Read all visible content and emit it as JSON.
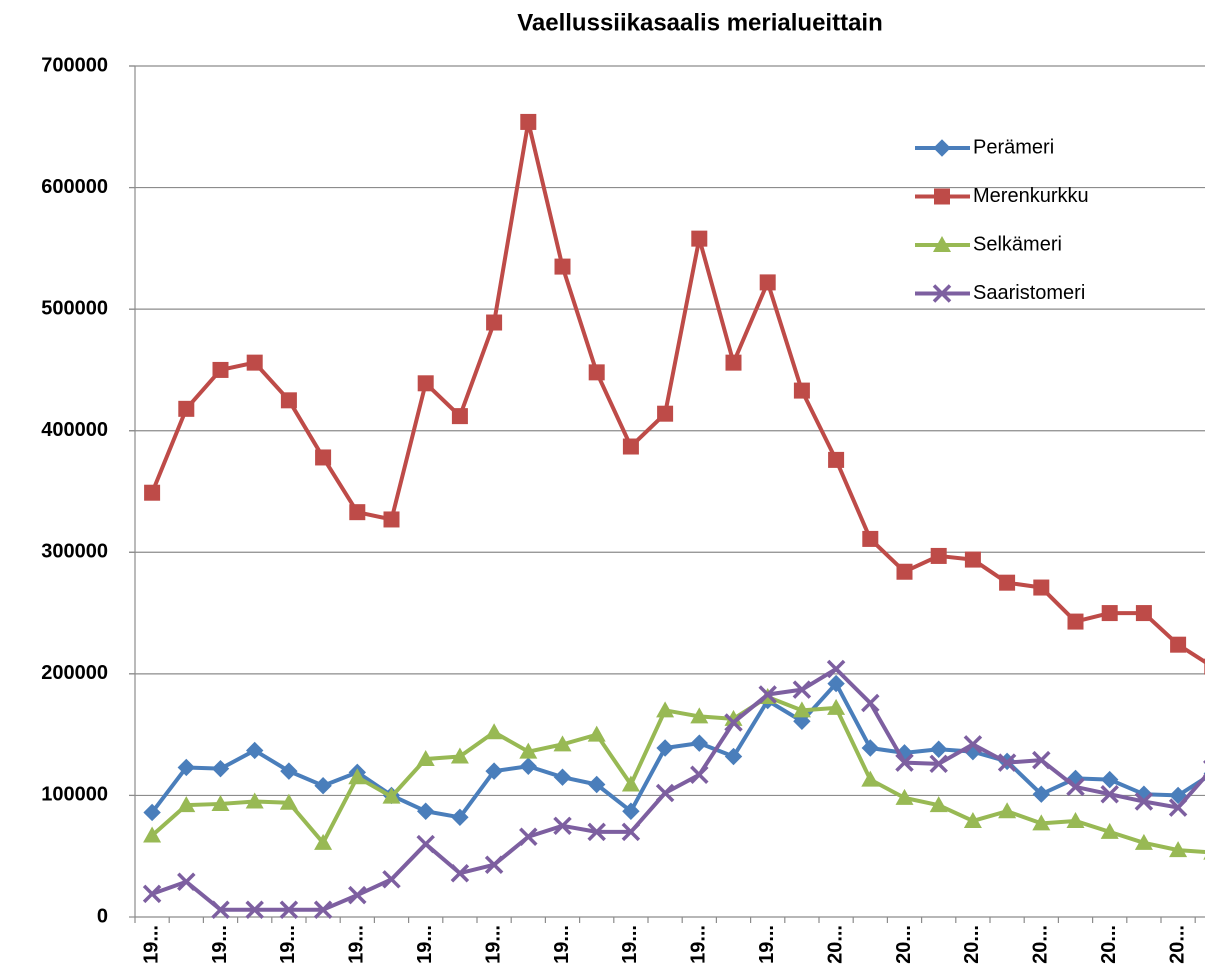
{
  "chart_data": {
    "type": "line",
    "title": "Vaellussiikasaalis merialueittain",
    "categories": [
      "19...",
      null,
      "19...",
      null,
      "19...",
      null,
      "19...",
      null,
      "19...",
      null,
      "19...",
      null,
      "19...",
      null,
      "19...",
      null,
      "19...",
      null,
      "19...",
      null,
      "20...",
      null,
      "20...",
      null,
      "20...",
      null,
      "20...",
      null,
      "20...",
      null,
      "20...",
      null
    ],
    "series": [
      {
        "name": "Perämeri",
        "color": "#4a7ebb",
        "marker": "diamond",
        "values": [
          86000,
          123000,
          122000,
          137000,
          120000,
          108000,
          119000,
          100000,
          87000,
          82000,
          120000,
          124000,
          115000,
          109000,
          87000,
          139000,
          143000,
          132000,
          178000,
          161000,
          192000,
          139000,
          135000,
          138000,
          136000,
          128000,
          101000,
          114000,
          113000,
          101000,
          100000,
          118000
        ]
      },
      {
        "name": "Merenkurkku",
        "color": "#be4b48",
        "marker": "square",
        "values": [
          349000,
          418000,
          450000,
          456000,
          425000,
          378000,
          333000,
          327000,
          439000,
          412000,
          489000,
          654000,
          535000,
          448000,
          387000,
          414000,
          558000,
          456000,
          522000,
          433000,
          376000,
          311000,
          284000,
          297000,
          294000,
          275000,
          271000,
          243000,
          250000,
          250000,
          224000,
          206000
        ]
      },
      {
        "name": "Selkämeri",
        "color": "#98b954",
        "marker": "triangle",
        "values": [
          67000,
          92000,
          93000,
          95000,
          94000,
          61000,
          115000,
          99000,
          130000,
          132000,
          152000,
          136000,
          142000,
          150000,
          109000,
          170000,
          165000,
          163000,
          181000,
          170000,
          172000,
          113000,
          98000,
          92000,
          79000,
          87000,
          77000,
          79000,
          70000,
          61000,
          55000,
          53000
        ]
      },
      {
        "name": "Saaristomeri",
        "color": "#7d5fa0",
        "marker": "x",
        "values": [
          19000,
          29000,
          6000,
          6000,
          6000,
          6000,
          18000,
          31000,
          60000,
          36000,
          43000,
          66000,
          75000,
          70000,
          70000,
          102000,
          117000,
          160000,
          183000,
          187000,
          204000,
          176000,
          127000,
          126000,
          142000,
          127000,
          129000,
          107000,
          101000,
          95000,
          90000,
          122000
        ]
      }
    ],
    "ylim": [
      0,
      700000
    ],
    "yticks": [
      0,
      100000,
      200000,
      300000,
      400000,
      500000,
      600000,
      700000
    ],
    "grid": true,
    "legend": "top-right"
  }
}
